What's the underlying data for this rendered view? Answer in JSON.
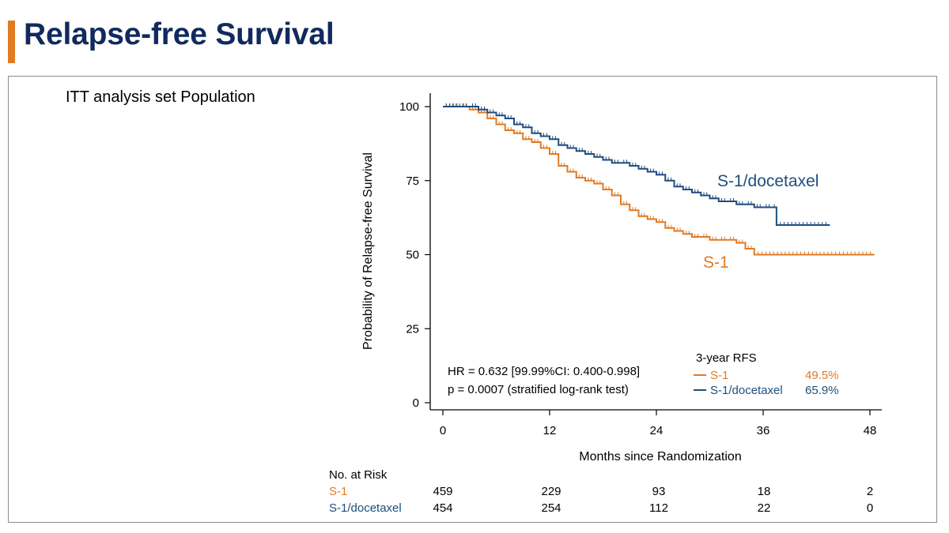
{
  "slide": {
    "title": "Relapse-free Survival",
    "population_label": "ITT analysis set Population",
    "accent_color": "#e07b24",
    "title_color": "#112a5e"
  },
  "chart_data": {
    "type": "line",
    "step": true,
    "ylabel": "Probability of Relapse-free Survival",
    "xlabel": "Months since Randomization",
    "xlim": [
      0,
      48
    ],
    "ylim": [
      0,
      100
    ],
    "xticks": [
      0,
      12,
      24,
      36,
      48
    ],
    "yticks": [
      0,
      25,
      50,
      75,
      100
    ],
    "series": [
      {
        "name": "S-1",
        "color": "#e07b24",
        "curve_label": "S-1",
        "x": [
          0,
          2,
          3,
          4,
          5,
          6,
          7,
          8,
          9,
          10,
          11,
          12,
          13,
          14,
          15,
          16,
          17,
          18,
          19,
          20,
          21,
          22,
          23,
          24,
          25,
          26,
          27,
          28,
          29,
          30,
          31,
          32,
          33,
          34,
          35,
          48.5
        ],
        "y": [
          100,
          100,
          99,
          98,
          96,
          94,
          92,
          91,
          89,
          88,
          86,
          84,
          80,
          78,
          76,
          75,
          74,
          72,
          70,
          67,
          65,
          63,
          62,
          61,
          59,
          58,
          57,
          56,
          56,
          55,
          55,
          55,
          54,
          52,
          50,
          50
        ]
      },
      {
        "name": "S-1/docetaxel",
        "color": "#1f4e7d",
        "curve_label": "S-1/docetaxel",
        "x": [
          0,
          3,
          4,
          5,
          6,
          7,
          8,
          9,
          10,
          11,
          12,
          13,
          14,
          15,
          16,
          17,
          18,
          19,
          20,
          21,
          22,
          23,
          24,
          25,
          26,
          27,
          28,
          29,
          30,
          31,
          32,
          33,
          34,
          35,
          36,
          37,
          37.5,
          43.5
        ],
        "y": [
          100,
          100,
          99,
          98,
          97,
          96,
          94,
          93,
          91,
          90,
          89,
          87,
          86,
          85,
          84,
          83,
          82,
          81,
          81,
          80,
          79,
          78,
          77,
          75,
          73,
          72,
          71,
          70,
          69,
          68,
          68,
          67,
          67,
          66,
          66,
          66,
          60,
          60
        ]
      }
    ],
    "annotations": {
      "hr": "HR = 0.632 [99.99%CI: 0.400-0.998]",
      "p": "p = 0.0007 (stratified log-rank test)"
    },
    "legend": {
      "title": "3-year RFS",
      "position": "bottom-right",
      "entries": [
        {
          "name": "S-1",
          "value": "49.5%",
          "color": "#e07b24"
        },
        {
          "name": "S-1/docetaxel",
          "value": "65.9%",
          "color": "#1f4e7d"
        }
      ]
    },
    "risk_table": {
      "title": "No. at Risk",
      "timepoints": [
        0,
        12,
        24,
        36,
        48
      ],
      "rows": [
        {
          "name": "S-1",
          "color": "#e07b24",
          "values": [
            "459",
            "229",
            "93",
            "18",
            "2"
          ]
        },
        {
          "name": "S-1/docetaxel",
          "color": "#1f4e7d",
          "values": [
            "454",
            "254",
            "112",
            "22",
            "0"
          ]
        }
      ]
    }
  }
}
